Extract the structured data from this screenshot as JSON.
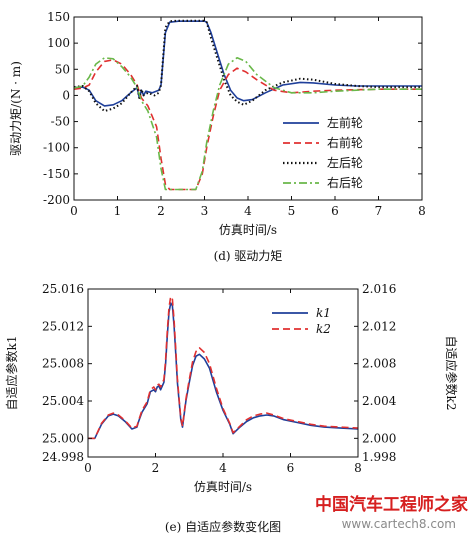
{
  "chart_data": [
    {
      "type": "line",
      "caption": "(d) 驱动力矩",
      "xlabel": "仿真时间/s",
      "ylabel": "驱动力矩/(N · m)",
      "xlim": [
        0,
        8
      ],
      "ylim": [
        -200,
        150
      ],
      "xticks": [
        0,
        1,
        2,
        3,
        4,
        5,
        6,
        7,
        8
      ],
      "yticks": [
        -200,
        -150,
        -100,
        -50,
        0,
        50,
        100,
        150
      ],
      "legend_position": "lower-right",
      "series": [
        {
          "name": "左前轮",
          "color": "#1f3f9a",
          "style": "solid",
          "x": [
            0,
            0.2,
            0.35,
            0.5,
            0.7,
            0.9,
            1.1,
            1.3,
            1.45,
            1.5,
            1.55,
            1.6,
            1.65,
            1.8,
            1.95,
            2.0,
            2.1,
            2.2,
            2.4,
            2.6,
            2.8,
            3.0,
            3.05,
            3.15,
            3.3,
            3.45,
            3.6,
            3.75,
            3.9,
            4.1,
            4.4,
            4.8,
            5.2,
            5.5,
            6.0,
            6.5,
            7.0,
            7.5,
            8.0
          ],
          "y": [
            15,
            16,
            10,
            -10,
            -20,
            -18,
            -10,
            5,
            15,
            -5,
            10,
            0,
            8,
            5,
            10,
            20,
            120,
            140,
            142,
            142,
            142,
            142,
            140,
            120,
            80,
            40,
            10,
            -5,
            -10,
            -8,
            5,
            20,
            25,
            24,
            20,
            18,
            18,
            18,
            18
          ]
        },
        {
          "name": "右前轮",
          "color": "#e03030",
          "style": "dashed",
          "x": [
            0,
            0.2,
            0.35,
            0.5,
            0.7,
            0.9,
            1.1,
            1.3,
            1.45,
            1.55,
            1.7,
            1.9,
            2.0,
            2.1,
            2.2,
            2.4,
            2.6,
            2.8,
            2.95,
            3.05,
            3.2,
            3.35,
            3.55,
            3.75,
            3.95,
            4.2,
            4.6,
            5.0,
            5.5,
            6.0,
            6.5,
            7.0,
            7.5,
            8.0
          ],
          "y": [
            12,
            14,
            20,
            45,
            65,
            68,
            60,
            40,
            20,
            -5,
            -20,
            -60,
            -120,
            -170,
            -180,
            -180,
            -180,
            -180,
            -150,
            -100,
            -40,
            10,
            40,
            52,
            45,
            30,
            10,
            5,
            8,
            10,
            11,
            12,
            12,
            12
          ]
        },
        {
          "name": "左后轮",
          "color": "#111111",
          "style": "dotted",
          "x": [
            0,
            0.2,
            0.35,
            0.5,
            0.7,
            0.9,
            1.1,
            1.3,
            1.45,
            1.5,
            1.55,
            1.6,
            1.7,
            1.85,
            1.95,
            2.0,
            2.1,
            2.2,
            2.4,
            2.6,
            2.8,
            3.0,
            3.05,
            3.15,
            3.3,
            3.45,
            3.6,
            3.75,
            3.9,
            4.1,
            4.4,
            4.8,
            5.2,
            5.5,
            6.0,
            6.5,
            7.0,
            7.5,
            8.0
          ],
          "y": [
            16,
            18,
            8,
            -15,
            -30,
            -25,
            -15,
            5,
            18,
            -5,
            12,
            0,
            5,
            0,
            5,
            20,
            130,
            142,
            143,
            143,
            143,
            143,
            140,
            110,
            70,
            30,
            0,
            -12,
            -18,
            -10,
            10,
            25,
            32,
            30,
            22,
            18,
            16,
            16,
            16
          ]
        },
        {
          "name": "右后轮",
          "color": "#6ab84a",
          "style": "dashdot",
          "x": [
            0,
            0.2,
            0.35,
            0.5,
            0.7,
            0.9,
            1.1,
            1.3,
            1.45,
            1.55,
            1.7,
            1.9,
            2.0,
            2.1,
            2.2,
            2.4,
            2.6,
            2.8,
            2.95,
            3.05,
            3.2,
            3.35,
            3.55,
            3.75,
            3.95,
            4.2,
            4.6,
            5.0,
            5.5,
            6.0,
            6.5,
            7.0,
            7.5,
            8.0
          ],
          "y": [
            14,
            18,
            35,
            60,
            72,
            70,
            55,
            35,
            15,
            -10,
            -30,
            -80,
            -140,
            -180,
            -180,
            -180,
            -180,
            -180,
            -145,
            -90,
            -30,
            20,
            60,
            72,
            65,
            40,
            15,
            5,
            5,
            8,
            10,
            12,
            12,
            12
          ]
        }
      ]
    },
    {
      "type": "line",
      "caption": "(e) 自适应参数变化图",
      "xlabel": "仿真时间/s",
      "ylabel": "自适应参数k1",
      "y2label": "自适应参数k2",
      "xlim": [
        0,
        8
      ],
      "ylim": [
        24.998,
        25.016
      ],
      "y2lim": [
        1.998,
        2.016
      ],
      "xticks": [
        0,
        2,
        4,
        6,
        8
      ],
      "yticks": [
        24.998,
        25.0,
        25.004,
        25.008,
        25.012,
        25.016
      ],
      "y2ticks": [
        1.998,
        2.0,
        2.004,
        2.008,
        2.012,
        2.016
      ],
      "ytick_labels": [
        "24.998",
        "25.000",
        "25.004",
        "25.008",
        "25.012",
        "25.016"
      ],
      "y2tick_labels": [
        "1.998",
        "2.000",
        "2.004",
        "2.008",
        "2.012",
        "2.016"
      ],
      "legend_position": "top-right",
      "series": [
        {
          "name": "k1",
          "color": "#1f3f9a",
          "style": "solid",
          "x": [
            0,
            0.2,
            0.4,
            0.6,
            0.75,
            0.9,
            1.1,
            1.3,
            1.45,
            1.5,
            1.6,
            1.75,
            1.85,
            1.95,
            2.0,
            2.05,
            2.1,
            2.15,
            2.25,
            2.3,
            2.35,
            2.4,
            2.45,
            2.5,
            2.55,
            2.6,
            2.65,
            2.7,
            2.75,
            2.8,
            2.9,
            3.0,
            3.1,
            3.2,
            3.3,
            3.45,
            3.6,
            3.8,
            4.0,
            4.2,
            4.3,
            4.5,
            4.7,
            4.9,
            5.1,
            5.3,
            5.5,
            5.8,
            6.2,
            6.6,
            7.0,
            7.5,
            8.0
          ],
          "y": [
            25.0,
            25.0,
            25.0015,
            25.0024,
            25.0026,
            25.0024,
            25.0018,
            25.001,
            25.0012,
            25.0018,
            25.0028,
            25.0037,
            25.005,
            25.0052,
            25.005,
            25.0055,
            25.0056,
            25.0052,
            25.006,
            25.008,
            25.011,
            25.0135,
            25.0145,
            25.0142,
            25.012,
            25.009,
            25.006,
            25.004,
            25.002,
            25.0012,
            25.004,
            25.006,
            25.0078,
            25.0088,
            25.009,
            25.0085,
            25.0075,
            25.005,
            25.003,
            25.0015,
            25.0005,
            25.0012,
            25.0018,
            25.0022,
            25.0024,
            25.0025,
            25.0024,
            25.002,
            25.0017,
            25.0014,
            25.0012,
            25.0011,
            25.001
          ]
        },
        {
          "name": "k2",
          "color": "#e03030",
          "style": "dashed",
          "x": [
            0,
            0.2,
            0.4,
            0.6,
            0.75,
            0.9,
            1.1,
            1.3,
            1.45,
            1.5,
            1.6,
            1.75,
            1.85,
            1.95,
            2.0,
            2.05,
            2.1,
            2.15,
            2.25,
            2.3,
            2.35,
            2.4,
            2.45,
            2.5,
            2.55,
            2.6,
            2.65,
            2.7,
            2.75,
            2.8,
            2.9,
            3.0,
            3.1,
            3.2,
            3.3,
            3.45,
            3.6,
            3.8,
            4.0,
            4.2,
            4.3,
            4.5,
            4.7,
            4.9,
            5.1,
            5.3,
            5.5,
            5.8,
            6.2,
            6.6,
            7.0,
            7.5,
            8.0
          ],
          "y": [
            2.0,
            2.0,
            2.0016,
            2.0025,
            2.0027,
            2.0025,
            2.0019,
            2.0011,
            2.0013,
            2.0019,
            2.003,
            2.0039,
            2.0052,
            2.0055,
            2.0052,
            2.0057,
            2.0058,
            2.0055,
            2.0063,
            2.0084,
            2.0115,
            2.014,
            2.0152,
            2.0149,
            2.0126,
            2.0095,
            2.0064,
            2.0042,
            2.0022,
            2.0013,
            2.0042,
            2.0063,
            2.0082,
            2.0093,
            2.0097,
            2.0092,
            2.008,
            2.0054,
            2.0032,
            2.0016,
            2.0006,
            2.0013,
            2.002,
            2.0024,
            2.0026,
            2.0027,
            2.0025,
            2.0021,
            2.0018,
            2.0015,
            2.0013,
            2.0012,
            2.0011
          ]
        }
      ]
    }
  ],
  "watermark": {
    "text": "中国汽车工程师之家",
    "subtext": "www.cartech8.com"
  },
  "colors": {
    "axis": "#111111",
    "watermark": "#d61f1f"
  }
}
